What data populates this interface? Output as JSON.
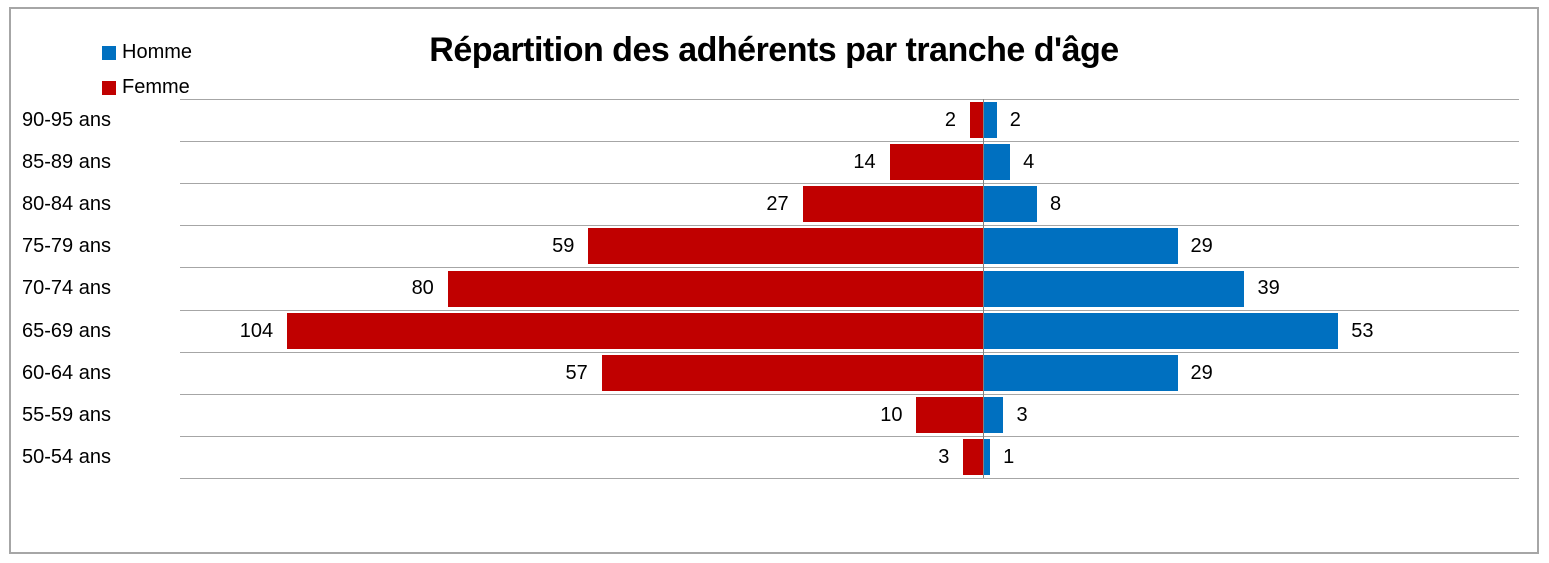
{
  "legend": [
    {
      "label": "Homme",
      "color": "#0070C0"
    },
    {
      "label": "Femme",
      "color": "#C00000"
    }
  ],
  "chart_data": {
    "type": "bar",
    "subtype": "population-pyramid",
    "title": "Répartition des adhérents par tranche d'âge",
    "categories": [
      "90-95 ans",
      "85-89 ans",
      "80-84 ans",
      "75-79 ans",
      "70-74 ans",
      "65-69 ans",
      "60-64 ans",
      "55-59 ans",
      "50-54 ans"
    ],
    "series": [
      {
        "name": "Homme",
        "side": "right",
        "color": "#0070C0",
        "values": [
          2,
          4,
          8,
          29,
          39,
          53,
          29,
          3,
          1
        ]
      },
      {
        "name": "Femme",
        "side": "left",
        "color": "#C00000",
        "values": [
          2,
          14,
          27,
          59,
          80,
          104,
          57,
          10,
          3
        ]
      }
    ],
    "xlim": [
      -120,
      80
    ],
    "value_labels": "outside-end",
    "grid": true,
    "legend_position": "top-left",
    "gridline_color": "#A6A6A6",
    "axis_color": "#808080"
  }
}
